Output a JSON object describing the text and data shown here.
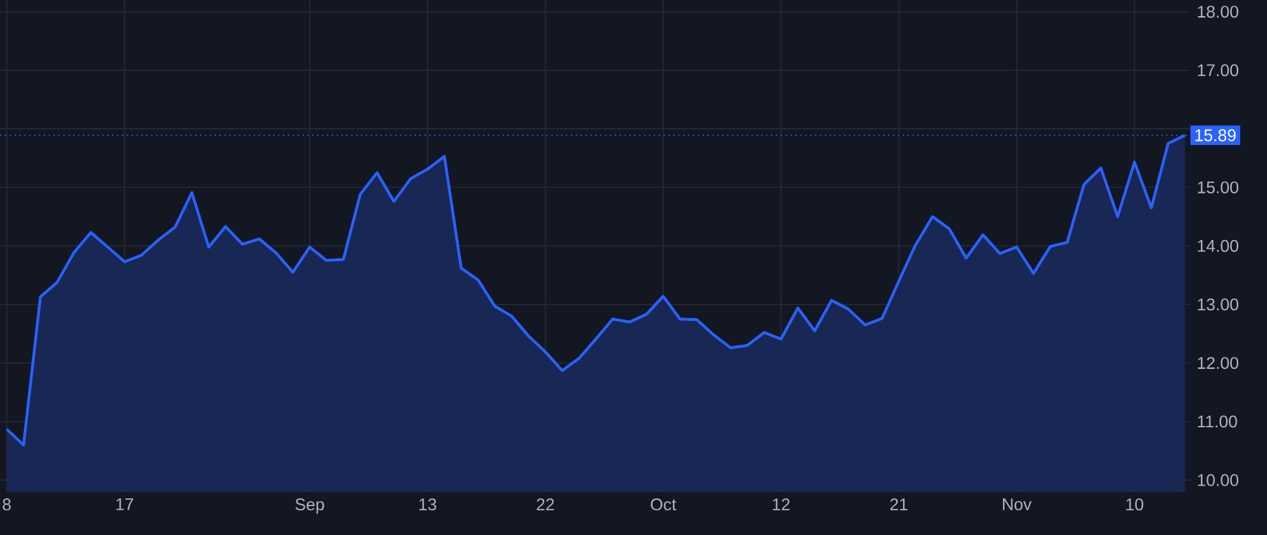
{
  "chart_data": {
    "type": "area",
    "categories": [
      "8",
      null,
      null,
      null,
      null,
      null,
      null,
      "17",
      null,
      null,
      null,
      null,
      null,
      null,
      null,
      null,
      null,
      null,
      "Sep",
      null,
      null,
      null,
      null,
      null,
      null,
      "13",
      null,
      null,
      null,
      null,
      null,
      null,
      "22",
      null,
      null,
      null,
      null,
      null,
      null,
      "Oct",
      null,
      null,
      null,
      null,
      null,
      null,
      "12",
      null,
      null,
      null,
      null,
      null,
      null,
      "21",
      null,
      null,
      null,
      null,
      null,
      null,
      "Nov",
      null,
      null,
      null,
      null,
      null,
      null,
      "10",
      null,
      null,
      null
    ],
    "series": [
      {
        "color": "#2962ff",
        "values": [
          10.87,
          10.6,
          13.13,
          13.38,
          13.89,
          14.23,
          13.98,
          13.73,
          13.84,
          14.1,
          14.32,
          14.91,
          13.98,
          14.33,
          14.03,
          14.12,
          13.88,
          13.55,
          13.98,
          13.75,
          13.77,
          14.88,
          15.25,
          14.76,
          15.15,
          15.31,
          15.53,
          13.62,
          13.42,
          12.97,
          12.8,
          12.46,
          12.19,
          11.87,
          12.08,
          12.41,
          12.75,
          12.7,
          12.83,
          13.14,
          12.75,
          12.74,
          12.48,
          12.26,
          12.3,
          12.52,
          12.41,
          12.94,
          12.55,
          13.07,
          12.92,
          12.65,
          12.76,
          13.4,
          14.02,
          14.5,
          14.29,
          13.79,
          14.19,
          13.87,
          13.98,
          13.53,
          13.99,
          14.06,
          15.05,
          15.33,
          14.5,
          15.43,
          14.65,
          15.75,
          15.89
        ]
      }
    ],
    "ylim": [
      9.8,
      18.2
    ],
    "yticks": [
      {
        "value": 10,
        "label": "10.00"
      },
      {
        "value": 11,
        "label": "11.00"
      },
      {
        "value": 12,
        "label": "12.00"
      },
      {
        "value": 13,
        "label": "13.00"
      },
      {
        "value": 14,
        "label": "14.00"
      },
      {
        "value": 15,
        "label": "15.00"
      },
      {
        "value": 16,
        "label": null
      },
      {
        "value": 17,
        "label": "17.00"
      },
      {
        "value": 18,
        "label": "18.00"
      }
    ],
    "ref_lines": [
      {
        "axis": "y",
        "value": 15.89,
        "label": "15.89",
        "color": "#2962ff",
        "line_style": "dotted"
      }
    ],
    "grid": true
  }
}
